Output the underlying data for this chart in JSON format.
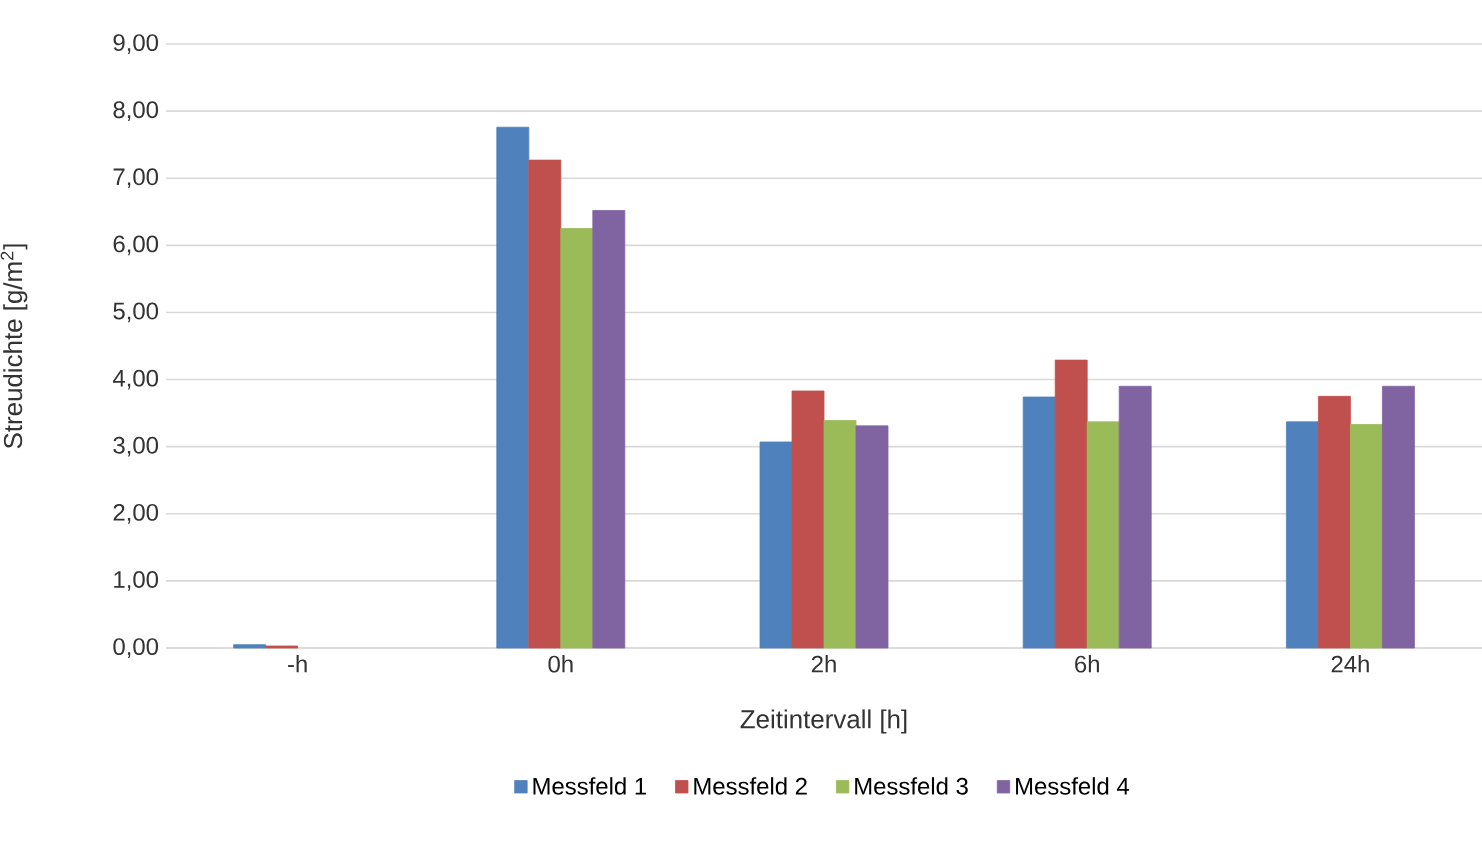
{
  "chart_data": {
    "type": "bar",
    "xlabel": "Zeitintervall [h]",
    "ylabel": "Streudichte [g/m$^{2}$]",
    "categories": [
      "-h",
      "0h",
      "2h",
      "6h",
      "24h"
    ],
    "series": [
      {
        "name": "Messfeld 1",
        "color": "#4f81bd",
        "values": [
          0.05,
          7.76,
          3.07,
          3.74,
          3.37
        ]
      },
      {
        "name": "Messfeld 2",
        "color": "#c0504d",
        "values": [
          0.03,
          7.27,
          3.83,
          4.29,
          3.75
        ]
      },
      {
        "name": "Messfeld 3",
        "color": "#9bbb59",
        "values": [
          null,
          6.25,
          3.39,
          3.37,
          3.33
        ]
      },
      {
        "name": "Messfeld 4",
        "color": "#8064a2",
        "values": [
          null,
          6.52,
          3.31,
          3.9,
          3.9
        ]
      }
    ],
    "ylim": [
      0,
      9
    ],
    "yticks": [
      {
        "value": 0,
        "label": "0,00"
      },
      {
        "value": 1,
        "label": "1,00"
      },
      {
        "value": 2,
        "label": "2,00"
      },
      {
        "value": 3,
        "label": "3,00"
      },
      {
        "value": 4,
        "label": "4,00"
      },
      {
        "value": 5,
        "label": "5,00"
      },
      {
        "value": 6,
        "label": "6,00"
      },
      {
        "value": 7,
        "label": "7,00"
      },
      {
        "value": 8,
        "label": "8,00"
      },
      {
        "value": 9,
        "label": "9,00"
      }
    ],
    "grid": "y",
    "legend": "bottom"
  }
}
